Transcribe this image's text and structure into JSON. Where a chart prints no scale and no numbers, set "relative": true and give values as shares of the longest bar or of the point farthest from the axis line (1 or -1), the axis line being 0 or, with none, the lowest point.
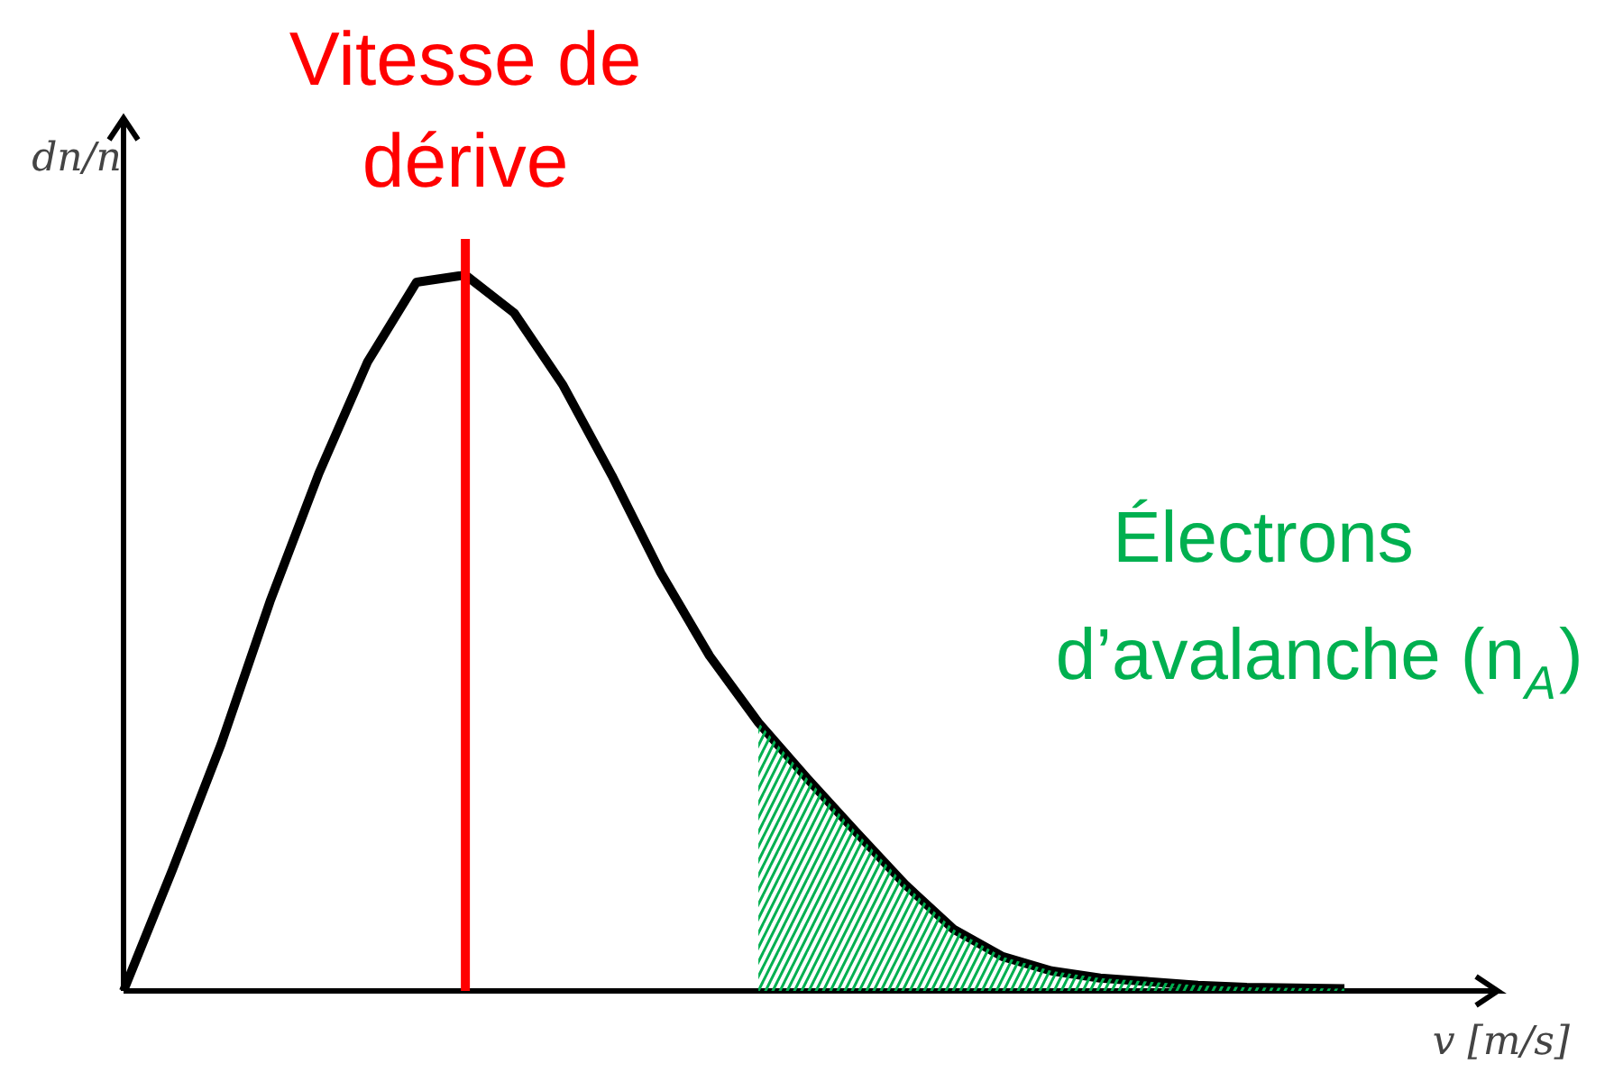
{
  "chart_data": {
    "type": "line",
    "relative": true,
    "grid": false,
    "xlabel": "v [m/s]",
    "ylabel": "dn/n",
    "categories": [
      null,
      null,
      null,
      null,
      null,
      null,
      null,
      null,
      null,
      null,
      null,
      null,
      null,
      null,
      null,
      null,
      null,
      null,
      null,
      null,
      null,
      null,
      null,
      null,
      null,
      null
    ],
    "series": [
      {
        "color": "#000000",
        "values": [
          0,
          0.169,
          0.345,
          0.544,
          0.723,
          0.879,
          0.99,
          1,
          0.947,
          0.846,
          0.72,
          0.584,
          0.468,
          0.375,
          0.297,
          0.222,
          0.149,
          0.086,
          0.048,
          0.028,
          0.018,
          0.013,
          0.008,
          0.005,
          0.004,
          0.003
        ]
      },
      {
        "type": "area",
        "name": "Électrons d’avalanche (n$_{A}$)",
        "color": "#00b050",
        "values": [
          null,
          null,
          null,
          null,
          null,
          null,
          null,
          null,
          null,
          null,
          null,
          null,
          null,
          0.375,
          0.297,
          0.222,
          0.149,
          0.086,
          0.048,
          0.028,
          0.018,
          0.013,
          0.008,
          0.005,
          0.004,
          0.003
        ]
      }
    ],
    "annotations": [
      "Vitesse de\ndérive"
    ]
  }
}
